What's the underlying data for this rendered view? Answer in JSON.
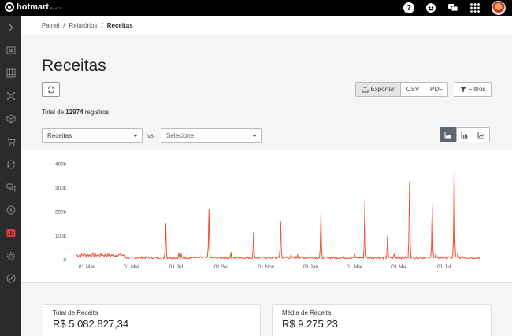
{
  "app": {
    "brand": "hotmart",
    "brand_sub": "BLACK"
  },
  "topbar": {
    "icons": [
      "help-icon",
      "community-icon",
      "chat-icon",
      "apps-grid-icon",
      "user-avatar"
    ]
  },
  "sidebar": {
    "items": [
      {
        "name": "expand-icon",
        "active": false
      },
      {
        "name": "dashboard-icon",
        "active": false
      },
      {
        "name": "products-icon",
        "active": false
      },
      {
        "name": "affiliates-icon",
        "active": false
      },
      {
        "name": "box-icon",
        "active": false
      },
      {
        "name": "cart-icon",
        "active": false
      },
      {
        "name": "recurrence-icon",
        "active": false
      },
      {
        "name": "messages-icon",
        "active": false
      },
      {
        "name": "money-icon",
        "active": false
      },
      {
        "name": "reports-icon",
        "active": true
      },
      {
        "name": "settings-icon",
        "active": false
      },
      {
        "name": "tools-icon",
        "active": false
      }
    ]
  },
  "breadcrumb": {
    "items": [
      "Painel",
      "Relatórios",
      "Receitas"
    ],
    "separator": "/"
  },
  "page": {
    "title": "Receitas"
  },
  "toolbar": {
    "export_label": "Exportar",
    "csv_label": "CSV",
    "pdf_label": "PDF",
    "filter_label": "Filtros"
  },
  "summary": {
    "prefix": "Total de",
    "count": "12974",
    "suffix": "registros"
  },
  "filters": {
    "metric_value": "Receitas",
    "vs_label": "vs",
    "compare_placeholder": "Selecione"
  },
  "chart_view": {
    "options": [
      "area-chart-icon",
      "bar-chart-icon",
      "line-chart-icon"
    ],
    "selected": "area-chart-icon"
  },
  "colors": {
    "accent": "#e53935",
    "line": "#f44a2d"
  },
  "chart_data": {
    "type": "line",
    "title": "",
    "xlabel": "",
    "ylabel": "",
    "ylim": [
      0,
      400000
    ],
    "yticks": [
      "0",
      "100k",
      "200k",
      "300k",
      "400k"
    ],
    "xticks": [
      "01 Mar",
      "01 Mai",
      "01 Jul",
      "01 Set",
      "01 Nov",
      "01 Jan",
      "01 Mar",
      "01 Mai",
      "01 Jul"
    ],
    "x_range": [
      "2019-02-15",
      "2020-08-20"
    ],
    "baseline": 12000,
    "series": [
      {
        "color": "#f44a2d",
        "peaks": [
          {
            "x": "2019-06-17",
            "y": 150000
          },
          {
            "x": "2019-07-05",
            "y": 30000
          },
          {
            "x": "2019-07-08",
            "y": 25000
          },
          {
            "x": "2019-08-15",
            "y": 212000
          },
          {
            "x": "2019-09-14",
            "y": 32000
          },
          {
            "x": "2019-10-15",
            "y": 115000
          },
          {
            "x": "2019-11-21",
            "y": 160000
          },
          {
            "x": "2019-12-05",
            "y": 22000
          },
          {
            "x": "2019-12-14",
            "y": 22000
          },
          {
            "x": "2020-01-15",
            "y": 193000
          },
          {
            "x": "2020-03-01",
            "y": 20000
          },
          {
            "x": "2020-03-15",
            "y": 243000
          },
          {
            "x": "2020-04-15",
            "y": 100000
          },
          {
            "x": "2020-04-24",
            "y": 24000
          },
          {
            "x": "2020-05-15",
            "y": 325000
          },
          {
            "x": "2020-06-15",
            "y": 230000
          },
          {
            "x": "2020-06-20",
            "y": 26000
          },
          {
            "x": "2020-07-15",
            "y": 378000
          },
          {
            "x": "2020-07-20",
            "y": 25000
          }
        ]
      }
    ]
  },
  "cards": [
    {
      "label": "Total de Receita",
      "value": "R$ 5.082.827,34"
    },
    {
      "label": "Média de Receita",
      "value": "R$ 9.275,23"
    }
  ]
}
